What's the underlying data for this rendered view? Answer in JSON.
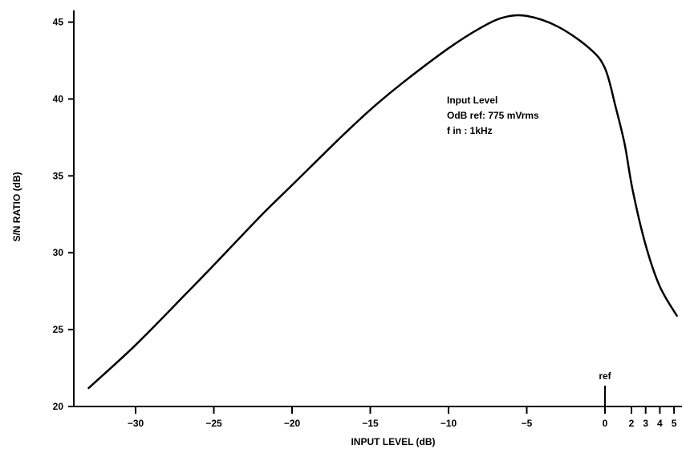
{
  "chart_data": {
    "type": "line",
    "title": "",
    "xlabel": "INPUT LEVEL (dB)",
    "ylabel": "S/N RATIO (dB)",
    "xlim": [
      -34,
      5.2
    ],
    "ylim": [
      20,
      45.5
    ],
    "x_scale": "linear below 0 dB, expanded above 0 dB",
    "grid": false,
    "legend": "none",
    "x_ticks": [
      {
        "value": -30,
        "label": "−30"
      },
      {
        "value": -25,
        "label": "−25"
      },
      {
        "value": -20,
        "label": "−20"
      },
      {
        "value": -15,
        "label": "−15"
      },
      {
        "value": -10,
        "label": "−10"
      },
      {
        "value": -5,
        "label": "−5"
      },
      {
        "value": 0,
        "label": "0"
      },
      {
        "value": 2,
        "label": "2"
      },
      {
        "value": 3,
        "label": "3"
      },
      {
        "value": 4,
        "label": "4"
      },
      {
        "value": 5,
        "label": "5"
      }
    ],
    "y_ticks": [
      {
        "value": 20,
        "label": "20"
      },
      {
        "value": 25,
        "label": "25"
      },
      {
        "value": 30,
        "label": "30"
      },
      {
        "value": 35,
        "label": "35"
      },
      {
        "value": 40,
        "label": "40"
      },
      {
        "value": 45,
        "label": "45"
      }
    ],
    "annotation": [
      "Input Level",
      "OdB ref: 775 mVrms",
      "f in : 1kHz"
    ],
    "ref_marker": {
      "x": 0,
      "label": "ref"
    },
    "series": [
      {
        "color": "#000000",
        "points": [
          {
            "x": -33,
            "y": 21.2
          },
          {
            "x": -30,
            "y": 24.0
          },
          {
            "x": -27,
            "y": 27.1
          },
          {
            "x": -25,
            "y": 29.2
          },
          {
            "x": -22,
            "y": 32.4
          },
          {
            "x": -20,
            "y": 34.4
          },
          {
            "x": -17,
            "y": 37.4
          },
          {
            "x": -15,
            "y": 39.3
          },
          {
            "x": -13,
            "y": 41.0
          },
          {
            "x": -10,
            "y": 43.3
          },
          {
            "x": -8,
            "y": 44.6
          },
          {
            "x": -6.5,
            "y": 45.3
          },
          {
            "x": -5,
            "y": 45.4
          },
          {
            "x": -3,
            "y": 44.7
          },
          {
            "x": -1,
            "y": 43.3
          },
          {
            "x": 0,
            "y": 42.0
          },
          {
            "x": 0.8,
            "y": 39.5
          },
          {
            "x": 1.5,
            "y": 37.0
          },
          {
            "x": 2.1,
            "y": 34.0
          },
          {
            "x": 3,
            "y": 30.5
          },
          {
            "x": 4,
            "y": 27.8
          },
          {
            "x": 5.2,
            "y": 25.9
          }
        ]
      }
    ]
  }
}
